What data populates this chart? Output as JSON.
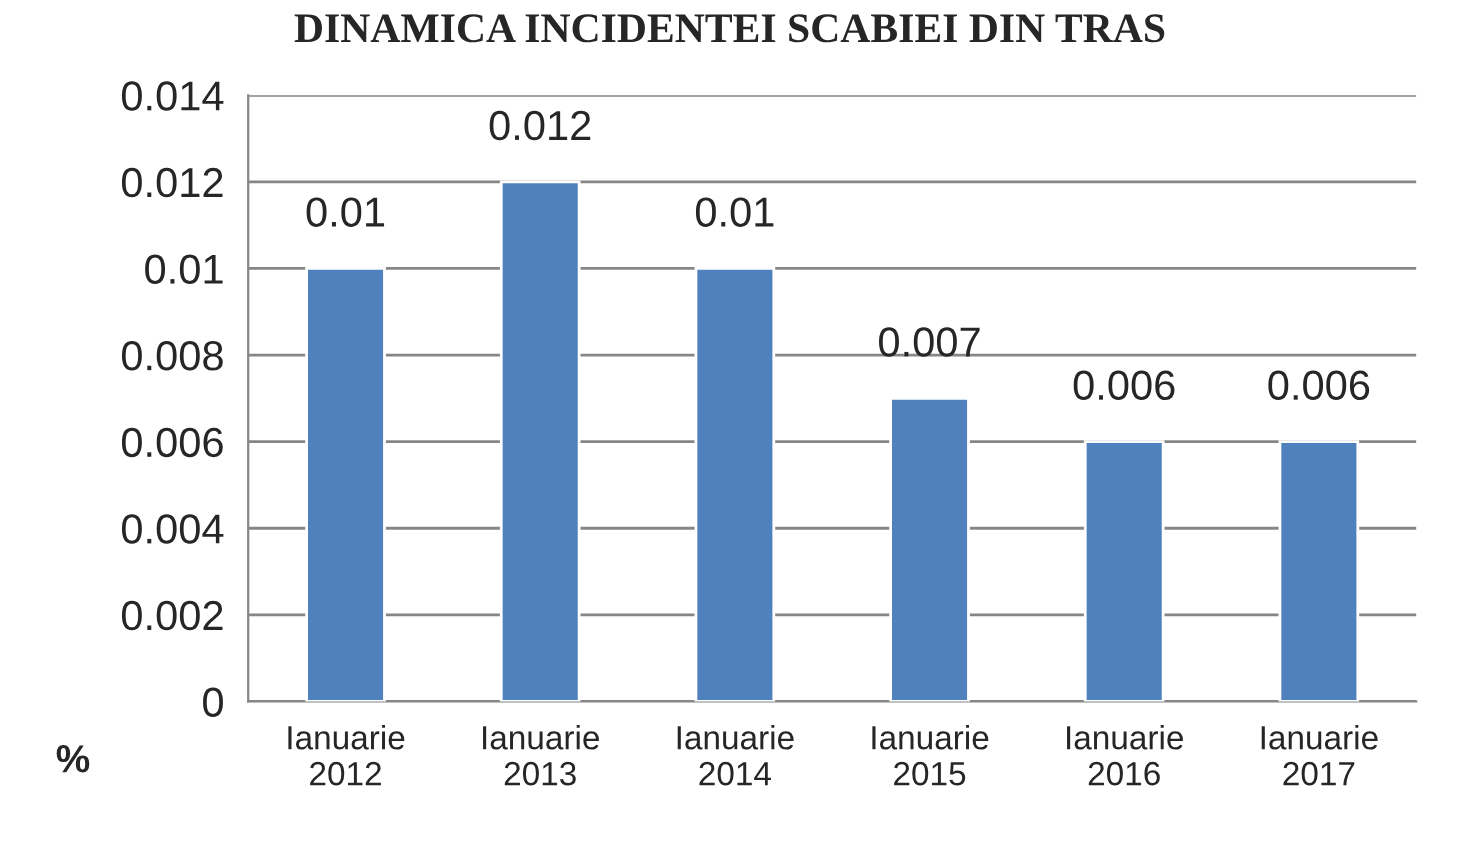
{
  "chart_data": {
    "type": "bar",
    "title": "DINAMICA INCIDENTEI SCABIEI DIN TRAS",
    "ylabel": "%",
    "categories": [
      "Ianuarie\n2012",
      "Ianuarie\n2013",
      "Ianuarie\n2014",
      "Ianuarie\n2015",
      "Ianuarie\n2016",
      "Ianuarie\n2017"
    ],
    "values": [
      0.01,
      0.012,
      0.01,
      0.007,
      0.006,
      0.006
    ],
    "color": "#4f81bd",
    "ylim": [
      0,
      0.014
    ],
    "yticks": [
      0,
      0.002,
      0.004,
      0.006,
      0.008,
      0.01,
      0.012,
      0.014
    ],
    "grid": "y",
    "data_labels": true,
    "legend": false
  }
}
